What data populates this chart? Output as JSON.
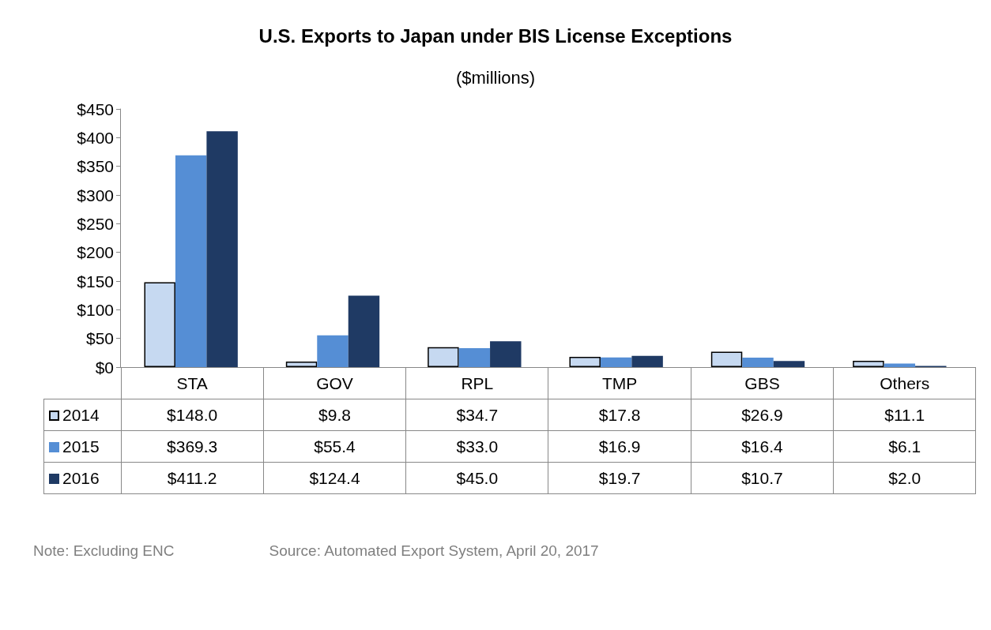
{
  "chart_data": {
    "type": "bar",
    "title": "U.S. Exports to Japan under BIS License Exceptions",
    "subtitle": "($millions)",
    "categories": [
      "STA",
      "GOV",
      "RPL",
      "TMP",
      "GBS",
      "Others"
    ],
    "series": [
      {
        "name": "2014",
        "color": "#c6d9f1",
        "values": [
          148.0,
          9.8,
          34.7,
          17.8,
          26.9,
          11.1
        ],
        "value_labels": [
          "$148.0",
          "$9.8",
          "$34.7",
          "$17.8",
          "$26.9",
          "$11.1"
        ]
      },
      {
        "name": "2015",
        "color": "#558ed5",
        "values": [
          369.3,
          55.4,
          33.0,
          16.9,
          16.4,
          6.1
        ],
        "value_labels": [
          "$369.3",
          "$55.4",
          "$33.0",
          "$16.9",
          "$16.4",
          "$6.1"
        ]
      },
      {
        "name": "2016",
        "color": "#1f3a64",
        "values": [
          411.2,
          124.4,
          45.0,
          19.7,
          10.7,
          2.0
        ],
        "value_labels": [
          "$411.2",
          "$124.4",
          "$45.0",
          "$19.7",
          "$10.7",
          "$2.0"
        ]
      }
    ],
    "ylim": [
      0,
      450
    ],
    "yticks": [
      {
        "value": 0,
        "label": "$0"
      },
      {
        "value": 50,
        "label": "$50"
      },
      {
        "value": 100,
        "label": "$100"
      },
      {
        "value": 150,
        "label": "$150"
      },
      {
        "value": 200,
        "label": "$200"
      },
      {
        "value": 250,
        "label": "$250"
      },
      {
        "value": 300,
        "label": "$300"
      },
      {
        "value": 350,
        "label": "$350"
      },
      {
        "value": 400,
        "label": "$400"
      },
      {
        "value": 450,
        "label": "$450"
      }
    ],
    "grid": false,
    "legend": "bottom left",
    "annotations": [
      "Note: Excluding ENC",
      "Source: Automated Export System, April 20, 2017"
    ]
  }
}
